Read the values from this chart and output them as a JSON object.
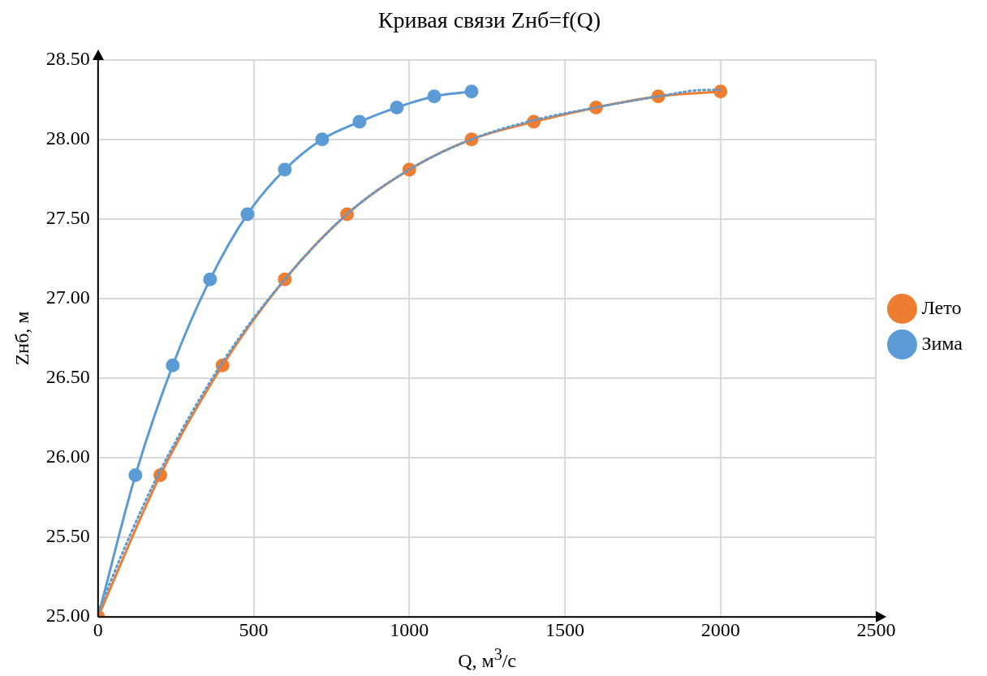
{
  "chart_data": {
    "type": "line",
    "title": "Кривая связи Zнб=f(Q)",
    "xlabel": "Q, м$^{3}$/с",
    "ylabel": "Zнб, м",
    "xlim": [
      0,
      2500
    ],
    "xticks": [
      0,
      500,
      1000,
      1500,
      2000,
      2500
    ],
    "ylim": [
      25,
      28.5
    ],
    "yticks": [
      {
        "value": 25,
        "label": "25.00"
      },
      {
        "value": 25.5,
        "label": "25.50"
      },
      {
        "value": 26,
        "label": "26.00"
      },
      {
        "value": 26.5,
        "label": "26.50"
      },
      {
        "value": 27,
        "label": "27.00"
      },
      {
        "value": 27.5,
        "label": "27.50"
      },
      {
        "value": 28,
        "label": "28.00"
      },
      {
        "value": 28.5,
        "label": "28.50"
      }
    ],
    "grid": true,
    "legend": "right",
    "marker": "circle",
    "series": [
      {
        "name": "Лето",
        "color": "#ed7d31",
        "x": [
          0,
          200,
          400,
          600,
          800,
          1000,
          1200,
          1400,
          1600,
          1800,
          2000
        ],
        "values": [
          25.0,
          25.89,
          26.58,
          27.12,
          27.53,
          27.81,
          28.0,
          28.11,
          28.2,
          28.27,
          28.3
        ]
      },
      {
        "name": "Зима",
        "color": "#5b9bd5",
        "x": [
          0,
          120,
          240,
          360,
          480,
          600,
          720,
          840,
          960,
          1080,
          1200
        ],
        "values": [
          25.0,
          25.89,
          26.58,
          27.12,
          27.53,
          27.81,
          28.0,
          28.11,
          28.2,
          28.27,
          28.3
        ]
      },
      {
        "type": "line",
        "color": "#5b9bd5",
        "marker": "none",
        "line_style": "dotted",
        "x": [
          0,
          100,
          200,
          400,
          600,
          800,
          1000,
          1200,
          1400,
          1600,
          1800,
          1950,
          2000
        ],
        "values": [
          25.03,
          25.5,
          25.92,
          26.6,
          27.12,
          27.53,
          27.81,
          28.0,
          28.12,
          28.2,
          28.27,
          28.31,
          28.31
        ]
      }
    ]
  }
}
